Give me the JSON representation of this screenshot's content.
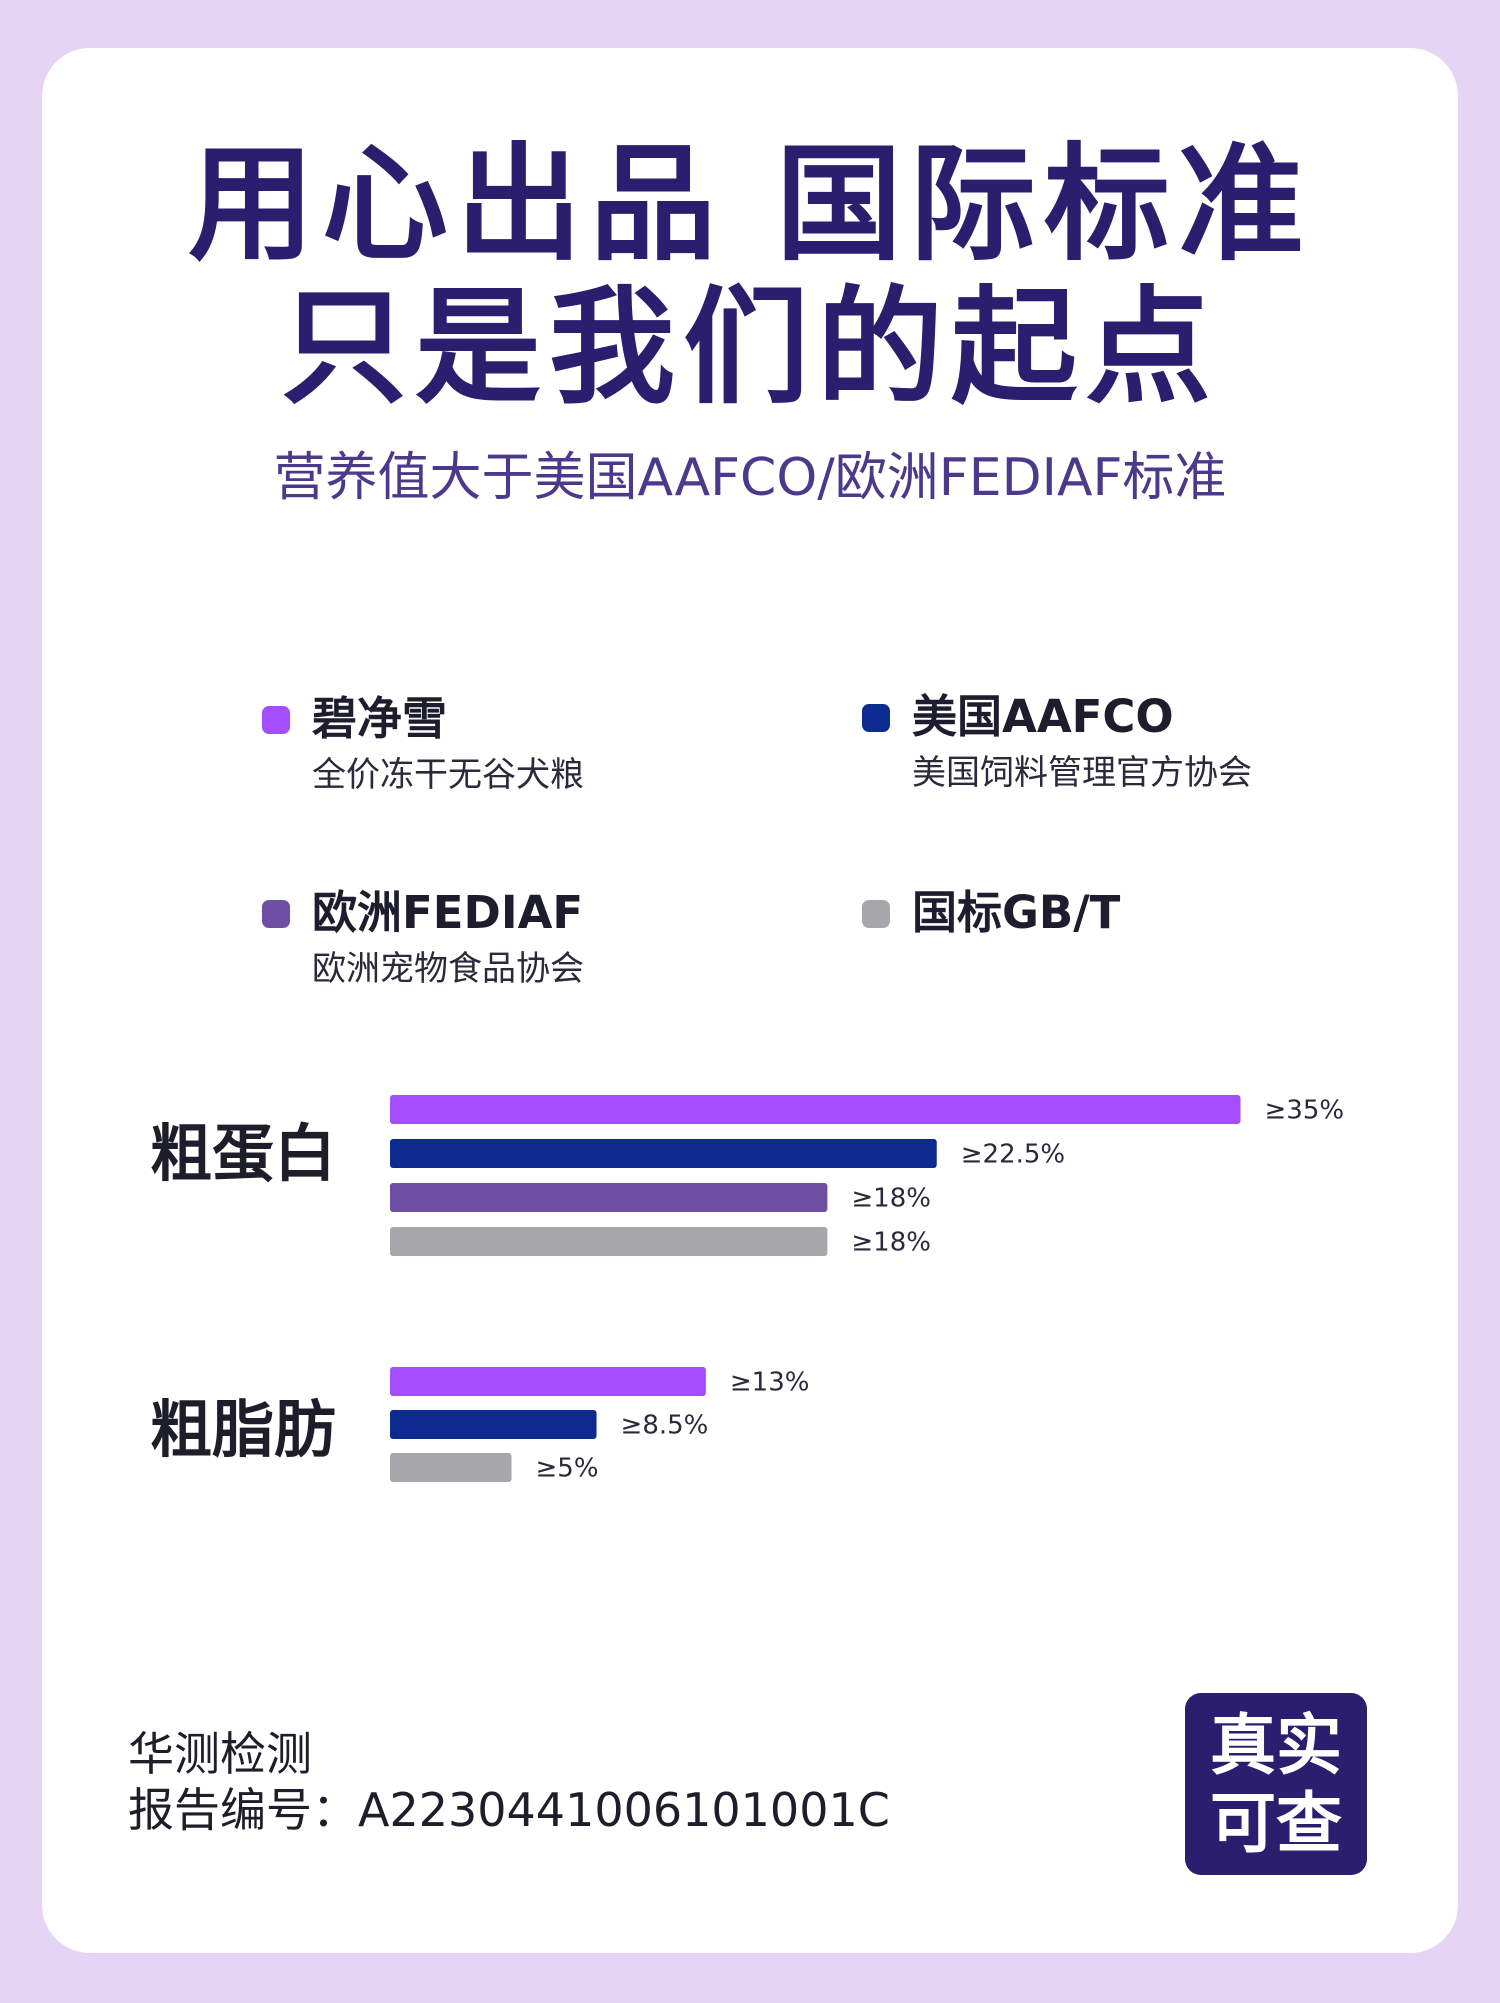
{
  "header": {
    "title_line1": "用心出品 国际标准",
    "title_line2": "只是我们的起点",
    "subtitle": "营养值大于美国AAFCO/欧洲FEDIAF标准"
  },
  "legend": [
    {
      "name": "碧净雪",
      "desc": "全价冻干无谷犬粮",
      "color": "#a64dff"
    },
    {
      "name": "美国AAFCO",
      "desc": "美国饲料管理官方协会",
      "color": "#0d2a8f"
    },
    {
      "name": "欧洲FEDIAF",
      "desc": "欧洲宠物食品协会",
      "color": "#6e4fa3"
    },
    {
      "name": "国标GB/T",
      "desc": "",
      "color": "#a6a6ab"
    }
  ],
  "chart_data": {
    "type": "bar",
    "orientation": "horizontal",
    "categories": [
      "粗蛋白",
      "粗脂肪"
    ],
    "series": [
      {
        "name": "碧净雪",
        "color": "#a64dff",
        "values": [
          35,
          13
        ],
        "labels": [
          "≥35%",
          "≥13%"
        ]
      },
      {
        "name": "美国AAFCO",
        "color": "#0d2a8f",
        "values": [
          22.5,
          8.5
        ],
        "labels": [
          "≥22.5%",
          "≥8.5%"
        ]
      },
      {
        "name": "欧洲FEDIAF",
        "color": "#6e4fa3",
        "values": [
          18,
          null
        ],
        "labels": [
          "≥18%",
          ""
        ]
      },
      {
        "name": "国标GB/T",
        "color": "#a6a6ab",
        "values": [
          18,
          5
        ],
        "labels": [
          "≥18%",
          "≥5%"
        ]
      }
    ],
    "unit": "%",
    "grid": false,
    "axes_visible": false
  },
  "footer": {
    "report_line1": "华测检测",
    "report_line2": "报告编号：A2230441006101001C",
    "badge_line1": "真实",
    "badge_line2": "可查"
  }
}
